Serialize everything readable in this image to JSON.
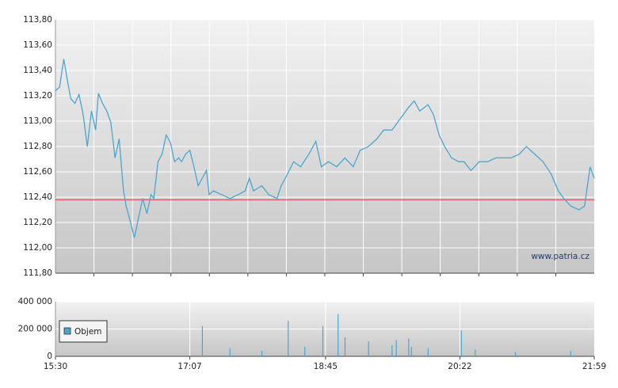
{
  "chart_data": [
    {
      "type": "line",
      "x": [
        "15:30",
        "15:33",
        "15:36",
        "15:39",
        "15:41",
        "15:44",
        "15:47",
        "15:50",
        "15:53",
        "15:56",
        "15:59",
        "16:01",
        "16:04",
        "16:07",
        "16:10",
        "16:13",
        "16:16",
        "16:19",
        "16:21",
        "16:24",
        "16:27",
        "16:30",
        "16:33",
        "16:36",
        "16:39",
        "16:41",
        "16:44",
        "16:47",
        "16:50",
        "16:53",
        "16:56",
        "16:59",
        "17:01",
        "17:04",
        "17:07",
        "17:10",
        "17:13",
        "17:16",
        "17:19",
        "17:21",
        "17:24",
        "17:30",
        "17:36",
        "17:42",
        "17:47",
        "17:50",
        "17:53",
        "17:59",
        "18:04",
        "18:10",
        "18:13",
        "18:16",
        "18:22",
        "18:27",
        "18:33",
        "18:38",
        "18:42",
        "18:47",
        "18:53",
        "18:59",
        "19:05",
        "19:10",
        "19:16",
        "19:22",
        "19:27",
        "19:33",
        "19:39",
        "19:45",
        "19:49",
        "19:53",
        "19:59",
        "20:03",
        "20:07",
        "20:11",
        "20:16",
        "20:21",
        "20:25",
        "20:30",
        "20:36",
        "20:42",
        "20:48",
        "20:53",
        "20:59",
        "21:05",
        "21:10",
        "21:16",
        "21:22",
        "21:28",
        "21:33",
        "21:37",
        "21:42",
        "21:48",
        "21:52",
        "21:56",
        "21:59"
      ],
      "series": [
        {
          "color": "#4aa6cf",
          "values": [
            113.24,
            113.27,
            113.49,
            113.3,
            113.18,
            113.14,
            113.21,
            113.05,
            112.8,
            113.08,
            112.93,
            113.22,
            113.14,
            113.08,
            112.99,
            112.71,
            112.86,
            112.46,
            112.33,
            112.21,
            112.08,
            112.24,
            112.39,
            112.27,
            112.42,
            112.39,
            112.68,
            112.74,
            112.89,
            112.83,
            112.68,
            112.71,
            112.68,
            112.74,
            112.77,
            112.64,
            112.49,
            112.55,
            112.61,
            112.42,
            112.45,
            112.42,
            112.39,
            112.42,
            112.45,
            112.55,
            112.45,
            112.49,
            112.42,
            112.39,
            112.49,
            112.55,
            112.68,
            112.64,
            112.74,
            112.84,
            112.64,
            112.68,
            112.64,
            112.71,
            112.64,
            112.77,
            112.8,
            112.86,
            112.93,
            112.93,
            113.02,
            113.11,
            113.16,
            113.08,
            113.13,
            113.05,
            112.89,
            112.8,
            112.71,
            112.68,
            112.68,
            112.61,
            112.68,
            112.68,
            112.71,
            112.71,
            112.71,
            112.74,
            112.8,
            112.74,
            112.68,
            112.58,
            112.45,
            112.39,
            112.33,
            112.3,
            112.33,
            112.64,
            112.55
          ]
        }
      ],
      "xlim": [
        "15:30",
        "21:59"
      ],
      "ylim": [
        111.8,
        113.8
      ],
      "yticks": [
        {
          "value": 111.8,
          "label": "111,80"
        },
        {
          "value": 112.0,
          "label": "112,00"
        },
        {
          "value": 112.2,
          "label": "112,20"
        },
        {
          "value": 112.4,
          "label": "112,40"
        },
        {
          "value": 112.6,
          "label": "112,60"
        },
        {
          "value": 112.8,
          "label": "112,80"
        },
        {
          "value": 113.0,
          "label": "113,00"
        },
        {
          "value": 113.2,
          "label": "113,20"
        },
        {
          "value": 113.4,
          "label": "113,40"
        },
        {
          "value": 113.6,
          "label": "113,60"
        },
        {
          "value": 113.8,
          "label": "113,80"
        }
      ],
      "reference_line": {
        "value": 112.38,
        "color": "#e03030"
      },
      "annotation": "www.patria.cz",
      "grid": true
    },
    {
      "type": "bar",
      "x": [
        "17:16",
        "17:36",
        "17:59",
        "18:18",
        "18:30",
        "18:43",
        "18:54",
        "18:59",
        "19:16",
        "19:33",
        "19:36",
        "19:45",
        "19:47",
        "19:59",
        "20:23",
        "20:33",
        "21:02",
        "21:42"
      ],
      "series": [
        {
          "name": "Objem",
          "color": "#4aa6cf",
          "values": [
            220000,
            60000,
            40000,
            260000,
            70000,
            220000,
            310000,
            140000,
            110000,
            80000,
            120000,
            130000,
            70000,
            60000,
            190000,
            50000,
            30000,
            40000
          ]
        }
      ],
      "xlim": [
        "15:30",
        "21:59"
      ],
      "xticks": [
        "15:30",
        "17:07",
        "18:45",
        "20:22",
        "21:59"
      ],
      "ylim": [
        0,
        400000
      ],
      "yticks": [
        0,
        {
          "value": 200000,
          "label": "200 000"
        },
        {
          "value": 400000,
          "label": "400 000"
        }
      ],
      "grid": true
    }
  ]
}
